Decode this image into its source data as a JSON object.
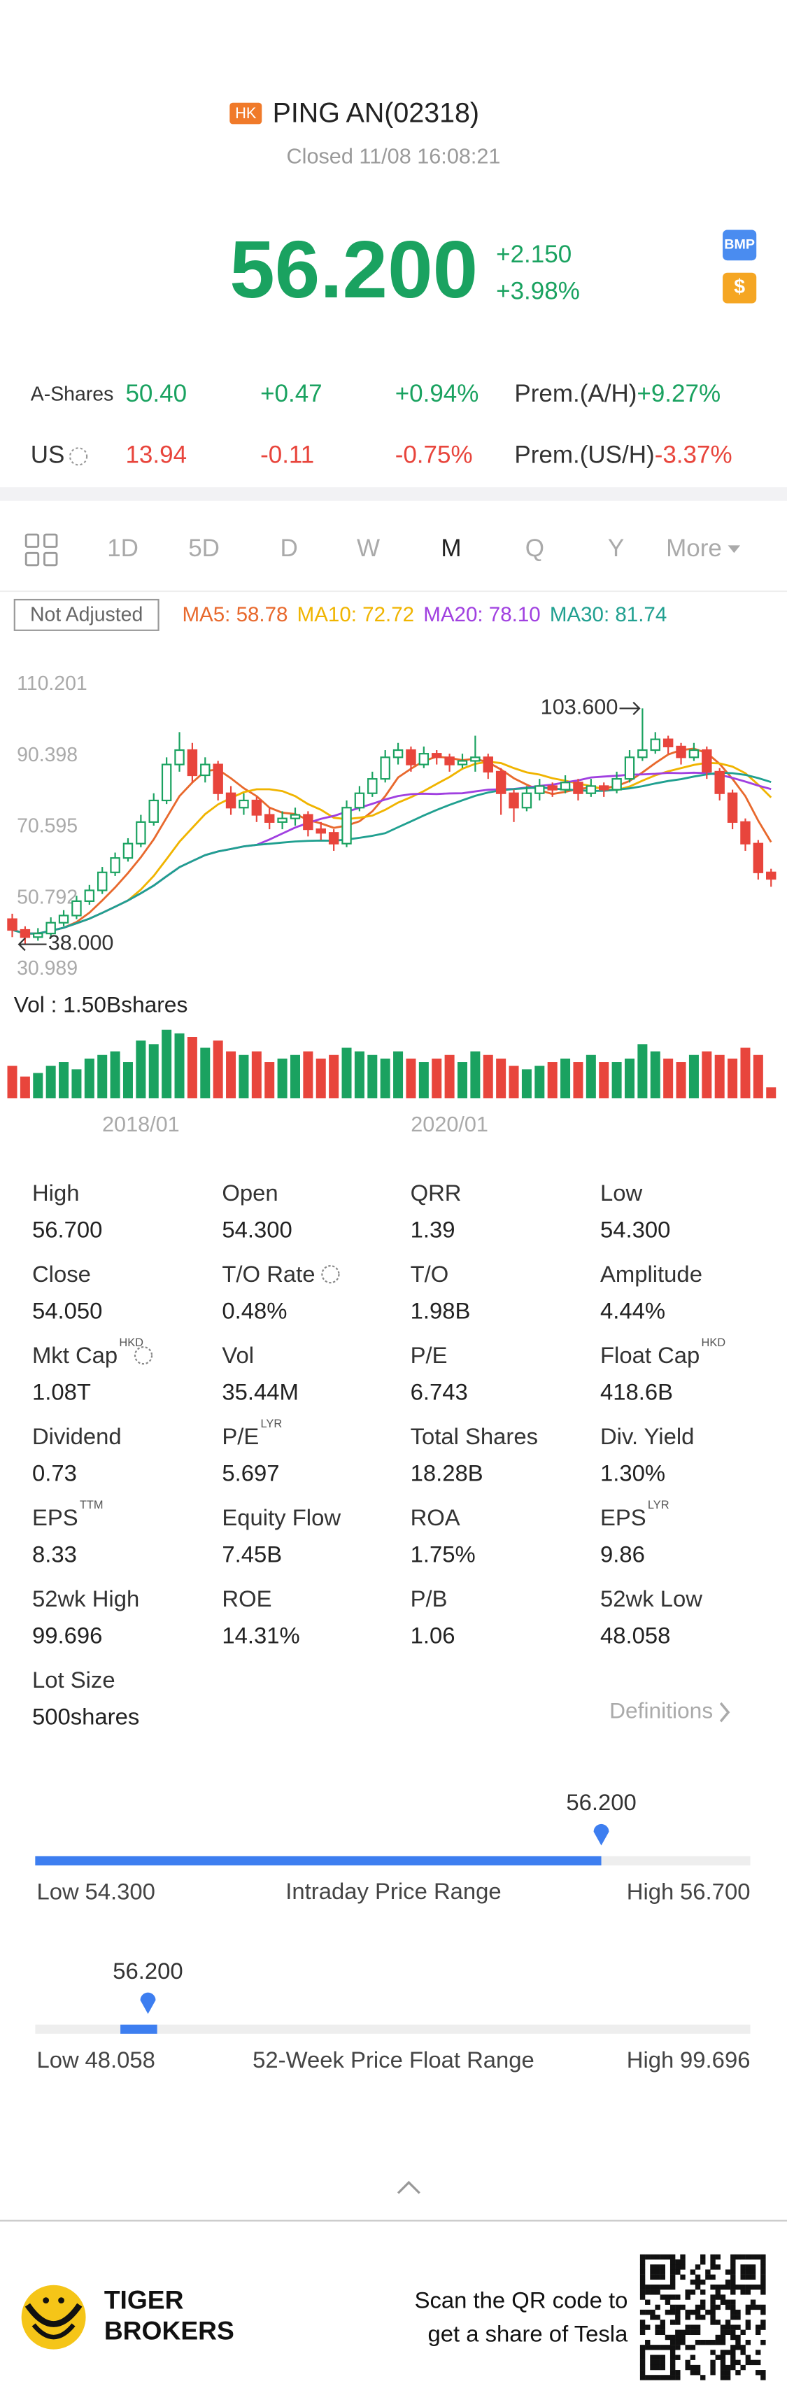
{
  "header": {
    "market": "HK",
    "name": "PING AN(02318)",
    "status": "Closed 11/08 16:08:21",
    "price": "56.200",
    "change": "+2.150",
    "change_pct": "+3.98%",
    "badges": [
      "BMP",
      "$"
    ]
  },
  "quotes": [
    {
      "label": "A-Shares",
      "price": "50.40",
      "change": "+0.47",
      "change_pct": "+0.94%",
      "premium_label": "Prem.(A/H)",
      "premium": "+9.27%",
      "color": "#1aa260"
    },
    {
      "label": "US",
      "price": "13.94",
      "change": "-0.11",
      "change_pct": "-0.75%",
      "premium_label": "Prem.(US/H)",
      "premium": "-3.37%",
      "color": "#e8453c"
    }
  ],
  "tabs": [
    "1D",
    "5D",
    "D",
    "W",
    "M",
    "Q",
    "Y",
    "More"
  ],
  "selected_tab": "M",
  "ma_legend": {
    "adjust": "Not Adjusted",
    "items": [
      {
        "label": "MA5: 58.78",
        "period": 5,
        "color": "#e8692d"
      },
      {
        "label": "MA10: 72.72",
        "period": 10,
        "color": "#f0b400"
      },
      {
        "label": "MA20: 78.10",
        "period": 20,
        "color": "#a040e0"
      },
      {
        "label": "MA30: 81.74",
        "period": 30,
        "color": "#20a090"
      }
    ]
  },
  "chart": {
    "type": "candlestick",
    "ylim": [
      30.989,
      110.201
    ],
    "yticks": [
      110.201,
      90.398,
      70.595,
      50.792,
      30.989
    ],
    "up_color": "#1aa260",
    "down_color": "#e8453c",
    "high_label": "103.600",
    "low_label": "38.000",
    "volume_label": "Vol  : 1.50Bshares",
    "vol_lim": [
      0,
      2
    ],
    "categories": [
      null,
      null,
      null,
      null,
      null,
      null,
      null,
      null,
      null,
      null,
      "2018/01",
      null,
      null,
      null,
      null,
      null,
      null,
      null,
      null,
      null,
      null,
      null,
      null,
      null,
      null,
      null,
      null,
      null,
      null,
      null,
      null,
      null,
      null,
      null,
      "2020/01",
      null,
      null,
      null,
      null,
      null,
      null,
      null,
      null,
      null,
      null,
      null,
      null,
      null,
      null,
      null,
      null,
      null,
      null,
      null,
      null,
      null,
      null,
      null,
      null,
      null
    ],
    "candles": [
      [
        45,
        46.5,
        40,
        42
      ],
      [
        42,
        43,
        38,
        40
      ],
      [
        40,
        42.5,
        39,
        41
      ],
      [
        41,
        45.5,
        40,
        44
      ],
      [
        44,
        47.5,
        43,
        46
      ],
      [
        46,
        51.5,
        45,
        50
      ],
      [
        50,
        54.5,
        49,
        53
      ],
      [
        53,
        59.5,
        52,
        58
      ],
      [
        58,
        63.5,
        57,
        62
      ],
      [
        62,
        67.5,
        61,
        66
      ],
      [
        66,
        74,
        65,
        72
      ],
      [
        72,
        80,
        71,
        78
      ],
      [
        78,
        90,
        77,
        88
      ],
      [
        88,
        97,
        86,
        92
      ],
      [
        92,
        94,
        83,
        85
      ],
      [
        85,
        90,
        83,
        88
      ],
      [
        88,
        89,
        78,
        80
      ],
      [
        80,
        82,
        74,
        76
      ],
      [
        76,
        80,
        74,
        78
      ],
      [
        78,
        79,
        72,
        74
      ],
      [
        74,
        76,
        70,
        72
      ],
      [
        72,
        75,
        70,
        73
      ],
      [
        73,
        76,
        71,
        74
      ],
      [
        74,
        75,
        68,
        70
      ],
      [
        70,
        72,
        67,
        69
      ],
      [
        69,
        70,
        64,
        66
      ],
      [
        66,
        78,
        65,
        76
      ],
      [
        76,
        82,
        75,
        80
      ],
      [
        80,
        86,
        79,
        84
      ],
      [
        84,
        92,
        83,
        90
      ],
      [
        90,
        94,
        88,
        92
      ],
      [
        92,
        93,
        86,
        88
      ],
      [
        88,
        93,
        87,
        91
      ],
      [
        91,
        92,
        88,
        90
      ],
      [
        90,
        91,
        86,
        88
      ],
      [
        88,
        91,
        87,
        89
      ],
      [
        89,
        96,
        86,
        90
      ],
      [
        90,
        91,
        84,
        86
      ],
      [
        86,
        87,
        74,
        80
      ],
      [
        80,
        81,
        72,
        76
      ],
      [
        76,
        82,
        75,
        80
      ],
      [
        80,
        84,
        78,
        82
      ],
      [
        82,
        83,
        79,
        81
      ],
      [
        81,
        85,
        80,
        83
      ],
      [
        83,
        84,
        78,
        80
      ],
      [
        80,
        84,
        79,
        82
      ],
      [
        82,
        83,
        79,
        81
      ],
      [
        81,
        86,
        80,
        84
      ],
      [
        84,
        92,
        83,
        90
      ],
      [
        90,
        103.6,
        89,
        92
      ],
      [
        92,
        97,
        91,
        95
      ],
      [
        95,
        96,
        91,
        93
      ],
      [
        93,
        94,
        88,
        90
      ],
      [
        90,
        94,
        89,
        92
      ],
      [
        92,
        93,
        84,
        86
      ],
      [
        86,
        87,
        78,
        80
      ],
      [
        80,
        81,
        70,
        72
      ],
      [
        72,
        73,
        64,
        66
      ],
      [
        66,
        67,
        56,
        58
      ],
      [
        58,
        59,
        54,
        56.2
      ]
    ],
    "volumes": [
      0.9,
      0.6,
      0.7,
      0.9,
      1.0,
      0.8,
      1.1,
      1.2,
      1.3,
      1.0,
      1.6,
      1.5,
      1.9,
      1.8,
      1.7,
      1.4,
      1.6,
      1.3,
      1.2,
      1.3,
      1.0,
      1.1,
      1.2,
      1.3,
      1.1,
      1.2,
      1.4,
      1.3,
      1.2,
      1.1,
      1.3,
      1.1,
      1.0,
      1.1,
      1.2,
      1.0,
      1.3,
      1.2,
      1.1,
      0.9,
      0.8,
      0.9,
      1.0,
      1.1,
      1.0,
      1.2,
      1.0,
      1.0,
      1.1,
      1.5,
      1.3,
      1.1,
      1.0,
      1.2,
      1.3,
      1.2,
      1.1,
      1.4,
      1.2,
      0.3
    ]
  },
  "stats": {
    "rows": [
      [
        {
          "label": "High",
          "value": "56.700"
        },
        {
          "label": "Open",
          "value": "54.300"
        },
        {
          "label": "QRR",
          "value": "1.39"
        },
        {
          "label": "Low",
          "value": "54.300"
        }
      ],
      [
        {
          "label": "Close",
          "value": "54.050"
        },
        {
          "label": "T/O Rate",
          "value": "0.48%",
          "info": true
        },
        {
          "label": "T/O",
          "value": "1.98B"
        },
        {
          "label": "Amplitude",
          "value": "4.44%"
        }
      ],
      [
        {
          "label": "Mkt Cap",
          "sup": "HKD",
          "value": "1.08T",
          "info": true
        },
        {
          "label": "Vol",
          "value": "35.44M"
        },
        {
          "label": "P/E",
          "value": "6.743"
        },
        {
          "label": "Float Cap",
          "sup": "HKD",
          "value": "418.6B"
        }
      ],
      [
        {
          "label": "Dividend",
          "value": "0.73"
        },
        {
          "label": "P/E",
          "sup": "LYR",
          "value": "5.697"
        },
        {
          "label": "Total Shares",
          "value": "18.28B"
        },
        {
          "label": "Div. Yield",
          "value": "1.30%"
        }
      ],
      [
        {
          "label": "EPS",
          "sup": "TTM",
          "value": "8.33"
        },
        {
          "label": "Equity Flow",
          "value": "7.45B"
        },
        {
          "label": "ROA",
          "value": "1.75%"
        },
        {
          "label": "EPS",
          "sup": "LYR",
          "value": "9.86"
        }
      ],
      [
        {
          "label": "52wk High",
          "value": "99.696"
        },
        {
          "label": "ROE",
          "value": "14.31%"
        },
        {
          "label": "P/B",
          "value": "1.06"
        },
        {
          "label": "52wk Low",
          "value": "48.058"
        }
      ],
      [
        {
          "label": "Lot Size",
          "value": "500shares"
        }
      ]
    ],
    "definitions": "Definitions"
  },
  "ranges": [
    {
      "current": "56.200",
      "low_label": "Low",
      "low": "54.300",
      "title": "Intraday Price Range",
      "high_label": "High",
      "high": "56.700",
      "style": "fill"
    },
    {
      "current": "56.200",
      "low_label": "Low",
      "low": "48.058",
      "title": "52-Week Price Float Range",
      "high_label": "High",
      "high": "99.696",
      "style": "segment"
    }
  ],
  "footer": {
    "brand": [
      "TIGER",
      "BROKERS"
    ],
    "cta": [
      "Scan the QR code to",
      "get a share of Tesla"
    ]
  }
}
